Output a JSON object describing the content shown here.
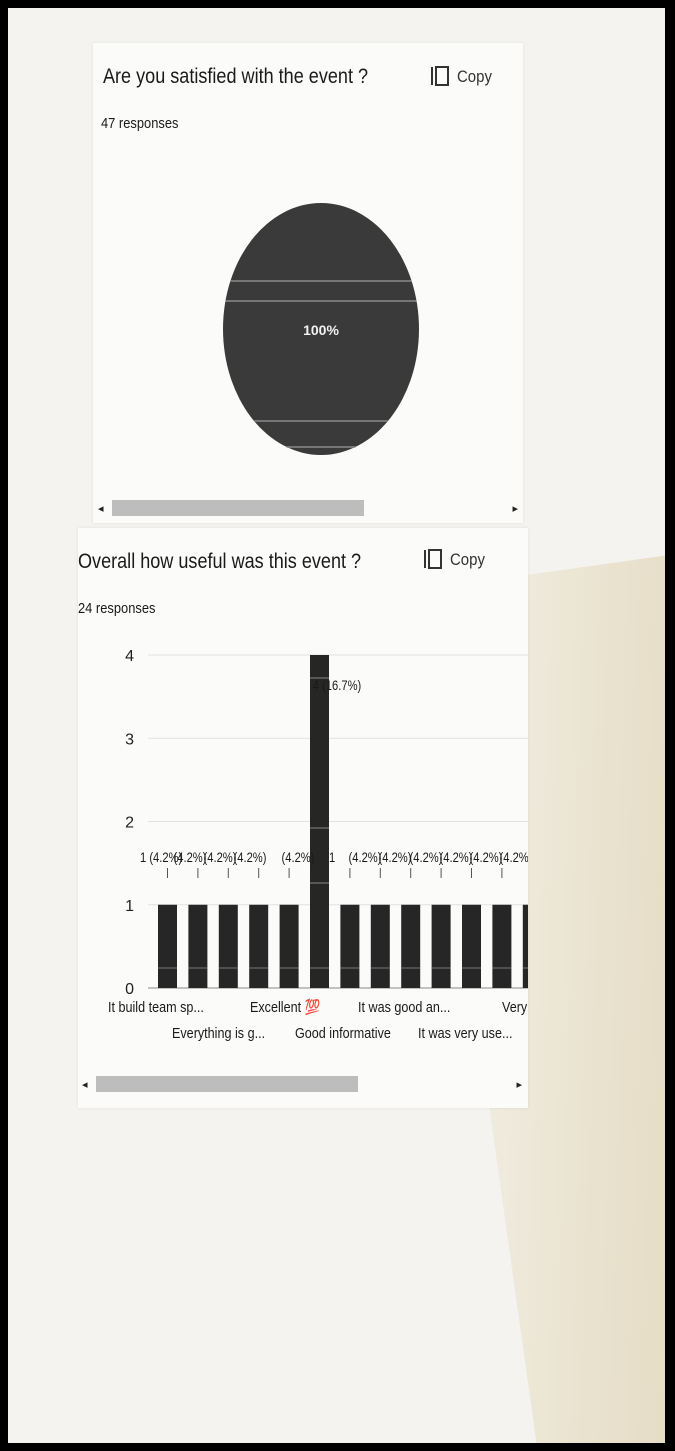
{
  "cards": [
    {
      "title": "Are you satisfied with the event ?",
      "responses": "47 responses",
      "copy_label": "Copy"
    },
    {
      "title": "Overall how useful was this event ?",
      "responses": "24 responses",
      "copy_label": "Copy"
    }
  ],
  "chart_data": [
    {
      "type": "pie",
      "slices": [
        {
          "value": 100,
          "label": "100%"
        }
      ],
      "colors": [
        "#3a3a3a"
      ],
      "legend": "none"
    },
    {
      "type": "bar",
      "values": [
        1,
        1,
        1,
        1,
        1,
        4,
        1,
        1,
        1,
        1,
        1,
        1,
        1
      ],
      "value_labels": [
        "1 (4.2%)",
        "(4.2%)",
        "(4.2%)",
        "(4.2%)",
        "(4.2%)",
        "4 (16.7%)",
        "1",
        "(4.2%)",
        "(4.2%)",
        "(4.2%)",
        "(4.2%)",
        "(4.2%)",
        "(4.2%)"
      ],
      "x_tick_labels_row1": [
        "It build team sp...",
        "Excellent 💯",
        "It was good an...",
        "Very"
      ],
      "x_tick_labels_row2": [
        "Everything is g...",
        "Good informative",
        "It was very use..."
      ],
      "y_ticks": [
        0,
        1,
        2,
        3,
        4
      ],
      "ylim": [
        0,
        4
      ],
      "grid": true,
      "bar_color": "#262626"
    }
  ]
}
